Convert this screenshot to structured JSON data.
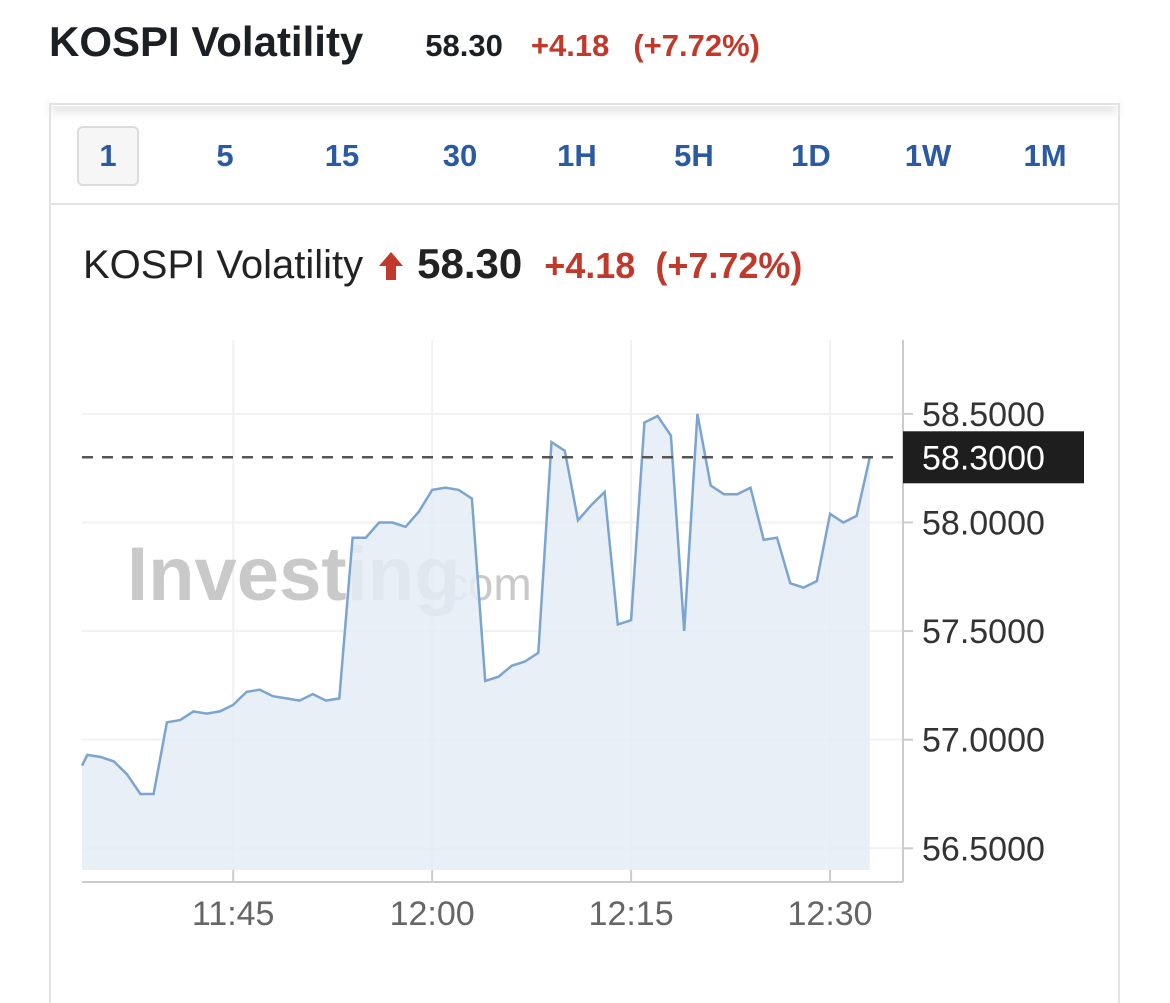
{
  "header": {
    "title": "KOSPI Volatility",
    "price": "58.30",
    "change": "+4.18",
    "change_pct": "(+7.72%)"
  },
  "tabs": [
    {
      "label": "1",
      "active": true
    },
    {
      "label": "5"
    },
    {
      "label": "15"
    },
    {
      "label": "30"
    },
    {
      "label": "1H"
    },
    {
      "label": "5H"
    },
    {
      "label": "1D"
    },
    {
      "label": "1W"
    },
    {
      "label": "1M"
    }
  ],
  "legend": {
    "name": "KOSPI Volatility",
    "price": "58.30",
    "change": "+4.18",
    "change_pct": "(+7.72%)",
    "direction_icon": "arrow-up-icon"
  },
  "watermark": {
    "brand": "Investing",
    "suffix": ".com"
  },
  "colors": {
    "up": "#c0392b",
    "tab_text": "#2a5aa3",
    "line": "#7ba5d0",
    "area": "#e4ecf4"
  },
  "chart_data": {
    "type": "area",
    "title": "KOSPI Volatility",
    "xlabel": "",
    "ylabel": "",
    "x_unit": "minutes after 11:00",
    "x": [
      33.6,
      34,
      35,
      36,
      37,
      38,
      39,
      40,
      41,
      42,
      43,
      44,
      45,
      46,
      47,
      48,
      49,
      50,
      51,
      52,
      53,
      54,
      55,
      56,
      57,
      58,
      59,
      60,
      61,
      62,
      63,
      64,
      65,
      66,
      67,
      68,
      69,
      70,
      71,
      72,
      73,
      74,
      75,
      76,
      77,
      78,
      79,
      80,
      81,
      82,
      83,
      84,
      85,
      86,
      87,
      88,
      89,
      90,
      91,
      92,
      93
    ],
    "values": [
      56.88,
      56.93,
      56.92,
      56.9,
      56.84,
      56.75,
      56.75,
      57.08,
      57.09,
      57.13,
      57.12,
      57.13,
      57.16,
      57.22,
      57.23,
      57.2,
      57.19,
      57.18,
      57.21,
      57.18,
      57.19,
      57.93,
      57.93,
      58.0,
      58.0,
      57.98,
      58.05,
      58.15,
      58.16,
      58.15,
      58.11,
      57.27,
      57.29,
      57.34,
      57.36,
      57.4,
      58.37,
      58.33,
      58.01,
      58.08,
      58.14,
      57.53,
      57.55,
      58.46,
      58.49,
      58.4,
      57.5,
      58.5,
      58.17,
      58.13,
      58.13,
      58.16,
      57.92,
      57.93,
      57.72,
      57.7,
      57.73,
      58.04,
      58.0,
      58.03,
      58.3
    ],
    "xlim": [
      33.6,
      95.5
    ],
    "ylim": [
      56.4,
      58.84
    ],
    "x_ticks": [
      {
        "value": 45,
        "label": "11:45"
      },
      {
        "value": 60,
        "label": "12:00"
      },
      {
        "value": 75,
        "label": "12:15"
      },
      {
        "value": 90,
        "label": "12:30"
      }
    ],
    "y_ticks": [
      {
        "value": 58.5,
        "label": "58.5000"
      },
      {
        "value": 58.0,
        "label": "58.0000"
      },
      {
        "value": 57.5,
        "label": "57.5000"
      },
      {
        "value": 57.0,
        "label": "57.0000"
      },
      {
        "value": 56.5,
        "label": "56.5000"
      }
    ],
    "current_value": 58.3,
    "current_label": "58.3000",
    "grid": true,
    "legend": "top-left"
  }
}
